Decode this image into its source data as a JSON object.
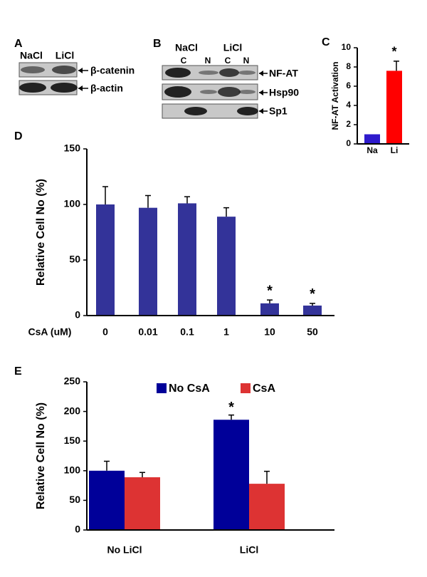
{
  "blots": [
    {
      "panel": "A",
      "lanes": [
        "NaCl",
        "LiCl"
      ],
      "bands": [
        "β-catenin",
        "β-actin"
      ]
    },
    {
      "panel": "B",
      "groups": [
        "NaCl",
        "LiCl"
      ],
      "lanes": [
        "C",
        "N",
        "C",
        "N"
      ],
      "bands": [
        "NF-AT",
        "Hsp90",
        "Sp1"
      ]
    }
  ],
  "chart_data": [
    {
      "type": "bar",
      "panel": "C",
      "ylabel": "NF-AT Activation",
      "categories": [
        "Na",
        "Li"
      ],
      "values": [
        1,
        7.6
      ],
      "errors": [
        0,
        1.0
      ],
      "colors": [
        "#2e1acc",
        "#ff0000"
      ],
      "markers": [
        null,
        "*"
      ],
      "ylim": [
        0,
        10
      ],
      "yticks": [
        0,
        2,
        4,
        6,
        8,
        10
      ]
    },
    {
      "type": "bar",
      "panel": "D",
      "ylabel": "Relative Cell No (%)",
      "xlabel": "CsA (uM)",
      "categories": [
        "0",
        "0.01",
        "0.1",
        "1",
        "10",
        "50"
      ],
      "values": [
        100,
        97,
        101,
        89,
        11,
        9
      ],
      "errors": [
        16,
        11,
        6,
        8,
        3,
        2
      ],
      "color": "#333399",
      "markers": [
        null,
        null,
        null,
        null,
        "*",
        "*"
      ],
      "ylim": [
        0,
        150
      ],
      "yticks": [
        0,
        50,
        100,
        150
      ]
    },
    {
      "type": "grouped-bar",
      "panel": "E",
      "ylabel": "Relative Cell No (%)",
      "categories": [
        "No LiCl",
        "LiCl"
      ],
      "legend": "top",
      "series": [
        {
          "name": "No CsA",
          "color": "#000099",
          "values": [
            100,
            186
          ],
          "errors": [
            16,
            8
          ],
          "markers": [
            null,
            "*"
          ]
        },
        {
          "name": "CsA",
          "color": "#dd3333",
          "values": [
            89,
            78
          ],
          "errors": [
            8,
            21
          ],
          "markers": [
            null,
            null
          ]
        }
      ],
      "ylim": [
        0,
        250
      ],
      "yticks": [
        0,
        50,
        100,
        150,
        200,
        250
      ]
    }
  ]
}
